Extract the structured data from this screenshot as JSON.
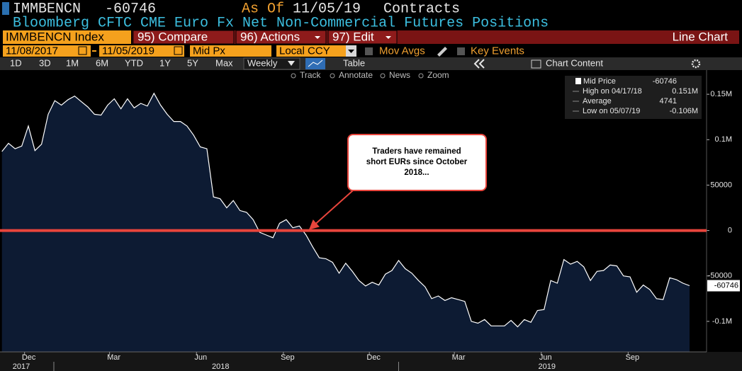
{
  "header": {
    "ticker": "IMMBENCN",
    "last": "-60746",
    "as_of_label": "As Of",
    "as_of": "11/05/19",
    "unit": "Contracts",
    "description": "Bloomberg CFTC CME Euro Fx Net Non-Commercial Futures Positions"
  },
  "toolbar": {
    "security": "IMMBENCN Index",
    "buttons": [
      "95) Compare",
      "96) Actions",
      "97) Edit"
    ],
    "chart_type": "Line Chart",
    "start_date": "11/08/2017",
    "end_date": "11/05/2019",
    "price_field": "Mid Px",
    "currency": "Local CCY",
    "options": [
      "Mov Avgs",
      "Key Events"
    ],
    "ranges": [
      "1D",
      "3D",
      "1M",
      "6M",
      "YTD",
      "1Y",
      "5Y",
      "Max"
    ],
    "frequency": "Weekly",
    "table": "Table",
    "chart_content": "Chart Content",
    "tools": [
      "Track",
      "Annotate",
      "News",
      "Zoom"
    ]
  },
  "chart_data": {
    "type": "line",
    "x": [
      "2017-11-07",
      "2017-11-14",
      "2017-11-21",
      "2017-11-28",
      "2017-12-05",
      "2017-12-12",
      "2017-12-19",
      "2017-12-26",
      "2018-01-02",
      "2018-01-09",
      "2018-01-16",
      "2018-01-23",
      "2018-01-30",
      "2018-02-06",
      "2018-02-13",
      "2018-02-20",
      "2018-02-27",
      "2018-03-06",
      "2018-03-13",
      "2018-03-20",
      "2018-03-27",
      "2018-04-03",
      "2018-04-10",
      "2018-04-17",
      "2018-04-24",
      "2018-05-01",
      "2018-05-08",
      "2018-05-15",
      "2018-05-22",
      "2018-05-29",
      "2018-06-05",
      "2018-06-12",
      "2018-06-19",
      "2018-06-26",
      "2018-07-03",
      "2018-07-10",
      "2018-07-17",
      "2018-07-24",
      "2018-07-31",
      "2018-08-07",
      "2018-08-14",
      "2018-08-21",
      "2018-08-28",
      "2018-09-04",
      "2018-09-11",
      "2018-09-18",
      "2018-09-25",
      "2018-10-02",
      "2018-10-09",
      "2018-10-16",
      "2018-10-23",
      "2018-10-30",
      "2018-11-06",
      "2018-11-13",
      "2018-11-20",
      "2018-11-27",
      "2018-12-04",
      "2018-12-11",
      "2018-12-18",
      "2018-12-25",
      "2019-01-01",
      "2019-01-08",
      "2019-01-15",
      "2019-01-22",
      "2019-01-29",
      "2019-02-05",
      "2019-02-12",
      "2019-02-19",
      "2019-02-26",
      "2019-03-05",
      "2019-03-12",
      "2019-03-19",
      "2019-03-26",
      "2019-04-02",
      "2019-04-09",
      "2019-04-16",
      "2019-04-23",
      "2019-04-30",
      "2019-05-07",
      "2019-05-14",
      "2019-05-21",
      "2019-05-28",
      "2019-06-04",
      "2019-06-11",
      "2019-06-18",
      "2019-06-25",
      "2019-07-02",
      "2019-07-09",
      "2019-07-16",
      "2019-07-23",
      "2019-07-30",
      "2019-08-06",
      "2019-08-13",
      "2019-08-20",
      "2019-08-27",
      "2019-09-03",
      "2019-09-10",
      "2019-09-17",
      "2019-09-24",
      "2019-10-01",
      "2019-10-08",
      "2019-10-15",
      "2019-10-22",
      "2019-10-29",
      "2019-11-05"
    ],
    "series": [
      {
        "name": "Mid Price",
        "color": "#ffffff",
        "fill": "#0d1b33",
        "values": [
          87000,
          96000,
          90000,
          93000,
          115000,
          88000,
          95000,
          128000,
          143000,
          138000,
          144000,
          148000,
          142000,
          136000,
          128000,
          127000,
          138000,
          145000,
          134000,
          145000,
          135000,
          140000,
          137000,
          151000,
          138000,
          128000,
          120000,
          120000,
          115000,
          105000,
          92000,
          90000,
          37000,
          35000,
          25000,
          33000,
          22000,
          20000,
          12000,
          -2000,
          -5000,
          -8000,
          8000,
          12000,
          3000,
          5000,
          -5000,
          -18000,
          -30000,
          -31000,
          -35000,
          -47000,
          -36000,
          -45000,
          -55000,
          -61000,
          -57000,
          -60000,
          -48000,
          -44000,
          -33000,
          -42000,
          -47000,
          -55000,
          -62000,
          -75000,
          -72000,
          -77000,
          -74000,
          -76000,
          -78000,
          -100000,
          -102000,
          -98000,
          -105000,
          -105000,
          -105000,
          -99000,
          -106000,
          -98000,
          -101000,
          -88000,
          -87000,
          -55000,
          -58000,
          -32000,
          -37000,
          -34000,
          -40000,
          -55000,
          -45000,
          -44000,
          -38000,
          -39000,
          -50000,
          -51000,
          -68000,
          -60000,
          -65000,
          -75000,
          -76000,
          -52000,
          -54000,
          -58000,
          -60746
        ]
      }
    ],
    "xlim": [
      "2017-11-05",
      "2019-11-23"
    ],
    "ylim": [
      -133600,
      176600
    ],
    "yticks": [
      {
        "value": 150000,
        "label": "0.15M"
      },
      {
        "value": 100000,
        "label": "0.1M"
      },
      50000,
      0,
      -50000,
      {
        "value": -100000,
        "label": "-0.1M"
      }
    ],
    "xticks": [
      {
        "value": "2017-12-01",
        "label": "Dec"
      },
      {
        "value": "2018-03-01",
        "label": "Mar"
      },
      {
        "value": "2018-06-01",
        "label": "Jun"
      },
      {
        "value": "2018-09-01",
        "label": "Sep"
      },
      {
        "value": "2018-12-01",
        "label": "Dec"
      },
      {
        "value": "2019-03-01",
        "label": "Mar"
      },
      {
        "value": "2019-06-01",
        "label": "Jun"
      },
      {
        "value": "2019-09-01",
        "label": "Sep"
      }
    ],
    "year_ticks": [
      {
        "value": "2017-01-01",
        "label": "2017"
      },
      {
        "value": "2018-01-01",
        "label": "2018"
      },
      {
        "value": "2019-01-01",
        "label": "2019"
      }
    ],
    "reference_line": {
      "value": 0,
      "color": "#e8453c"
    },
    "annotation": {
      "lines": [
        "Traders have remained",
        "short EURs since October",
        "2018..."
      ],
      "color": "#e8453c"
    },
    "legend_stats": [
      {
        "name": "High on 04/17/18",
        "value": 151000,
        "label": "0.151M"
      },
      {
        "name": "Average",
        "value": 4741
      },
      {
        "name": "Low on 05/07/19",
        "value": -106000,
        "label": "-0.106M"
      }
    ],
    "grid": false
  }
}
